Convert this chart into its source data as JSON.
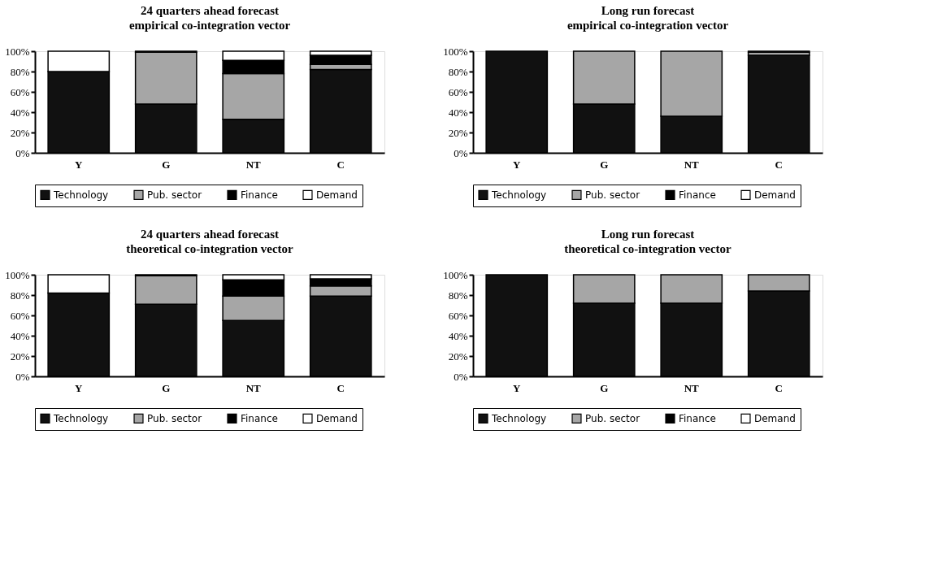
{
  "chart_data": [
    {
      "type": "bar",
      "stacked": true,
      "title": "24 quarters ahead forecast",
      "subtitle": "empirical co-integration vector",
      "categories": [
        "Y",
        "G",
        "NT",
        "C"
      ],
      "ylim": [
        0,
        100
      ],
      "yticks": [
        {
          "value": 0,
          "label": "0%"
        },
        {
          "value": 20,
          "label": "20%"
        },
        {
          "value": 40,
          "label": "40%"
        },
        {
          "value": 60,
          "label": "60%"
        },
        {
          "value": 80,
          "label": "80%"
        },
        {
          "value": 100,
          "label": "100%"
        }
      ],
      "grid": false,
      "legend": "bottom",
      "series": [
        {
          "name": "Technology",
          "color": "#111111",
          "values": [
            80,
            48,
            33,
            82
          ]
        },
        {
          "name": "Pub. sector",
          "color": "#a6a6a6",
          "values": [
            0,
            51,
            45,
            5
          ]
        },
        {
          "name": "Finance",
          "color": "#000000",
          "values": [
            0,
            1,
            13,
            9
          ]
        },
        {
          "name": "Demand",
          "color": "#ffffff",
          "values": [
            20,
            0,
            9,
            4
          ]
        }
      ]
    },
    {
      "type": "bar",
      "stacked": true,
      "title": "Long run forecast",
      "subtitle": "empirical co-integration vector",
      "categories": [
        "Y",
        "G",
        "NT",
        "C"
      ],
      "ylim": [
        0,
        100
      ],
      "yticks": [
        {
          "value": 0,
          "label": "0%"
        },
        {
          "value": 20,
          "label": "20%"
        },
        {
          "value": 40,
          "label": "40%"
        },
        {
          "value": 60,
          "label": "60%"
        },
        {
          "value": 80,
          "label": "80%"
        },
        {
          "value": 100,
          "label": "100%"
        }
      ],
      "grid": false,
      "legend": "bottom",
      "series": [
        {
          "name": "Technology",
          "color": "#111111",
          "values": [
            100,
            48,
            36,
            96
          ]
        },
        {
          "name": "Pub. sector",
          "color": "#a6a6a6",
          "values": [
            0,
            52,
            64,
            3
          ]
        },
        {
          "name": "Finance",
          "color": "#000000",
          "values": [
            0,
            0,
            0,
            1
          ]
        },
        {
          "name": "Demand",
          "color": "#ffffff",
          "values": [
            0,
            0,
            0,
            0
          ]
        }
      ]
    },
    {
      "type": "bar",
      "stacked": true,
      "title": "24 quarters ahead forecast",
      "subtitle": "theoretical co-integration vector",
      "categories": [
        "Y",
        "G",
        "NT",
        "C"
      ],
      "ylim": [
        0,
        100
      ],
      "yticks": [
        {
          "value": 0,
          "label": "0%"
        },
        {
          "value": 20,
          "label": "20%"
        },
        {
          "value": 40,
          "label": "40%"
        },
        {
          "value": 60,
          "label": "60%"
        },
        {
          "value": 80,
          "label": "80%"
        },
        {
          "value": 100,
          "label": "100%"
        }
      ],
      "grid": false,
      "legend": "bottom",
      "series": [
        {
          "name": "Technology",
          "color": "#111111",
          "values": [
            82,
            71,
            55,
            79
          ]
        },
        {
          "name": "Pub. sector",
          "color": "#a6a6a6",
          "values": [
            0,
            28,
            24,
            10
          ]
        },
        {
          "name": "Finance",
          "color": "#000000",
          "values": [
            0,
            1,
            16,
            7
          ]
        },
        {
          "name": "Demand",
          "color": "#ffffff",
          "values": [
            18,
            0,
            5,
            4
          ]
        }
      ]
    },
    {
      "type": "bar",
      "stacked": true,
      "title": "Long run forecast",
      "subtitle": "theoretical co-integration vector",
      "categories": [
        "Y",
        "G",
        "NT",
        "C"
      ],
      "ylim": [
        0,
        100
      ],
      "yticks": [
        {
          "value": 0,
          "label": "0%"
        },
        {
          "value": 20,
          "label": "20%"
        },
        {
          "value": 40,
          "label": "40%"
        },
        {
          "value": 60,
          "label": "60%"
        },
        {
          "value": 80,
          "label": "80%"
        },
        {
          "value": 100,
          "label": "100%"
        }
      ],
      "grid": false,
      "legend": "bottom",
      "series": [
        {
          "name": "Technology",
          "color": "#111111",
          "values": [
            100,
            72,
            72,
            84
          ]
        },
        {
          "name": "Pub. sector",
          "color": "#a6a6a6",
          "values": [
            0,
            28,
            28,
            16
          ]
        },
        {
          "name": "Finance",
          "color": "#000000",
          "values": [
            0,
            0,
            0,
            0
          ]
        },
        {
          "name": "Demand",
          "color": "#ffffff",
          "values": [
            0,
            0,
            0,
            0
          ]
        }
      ]
    }
  ]
}
